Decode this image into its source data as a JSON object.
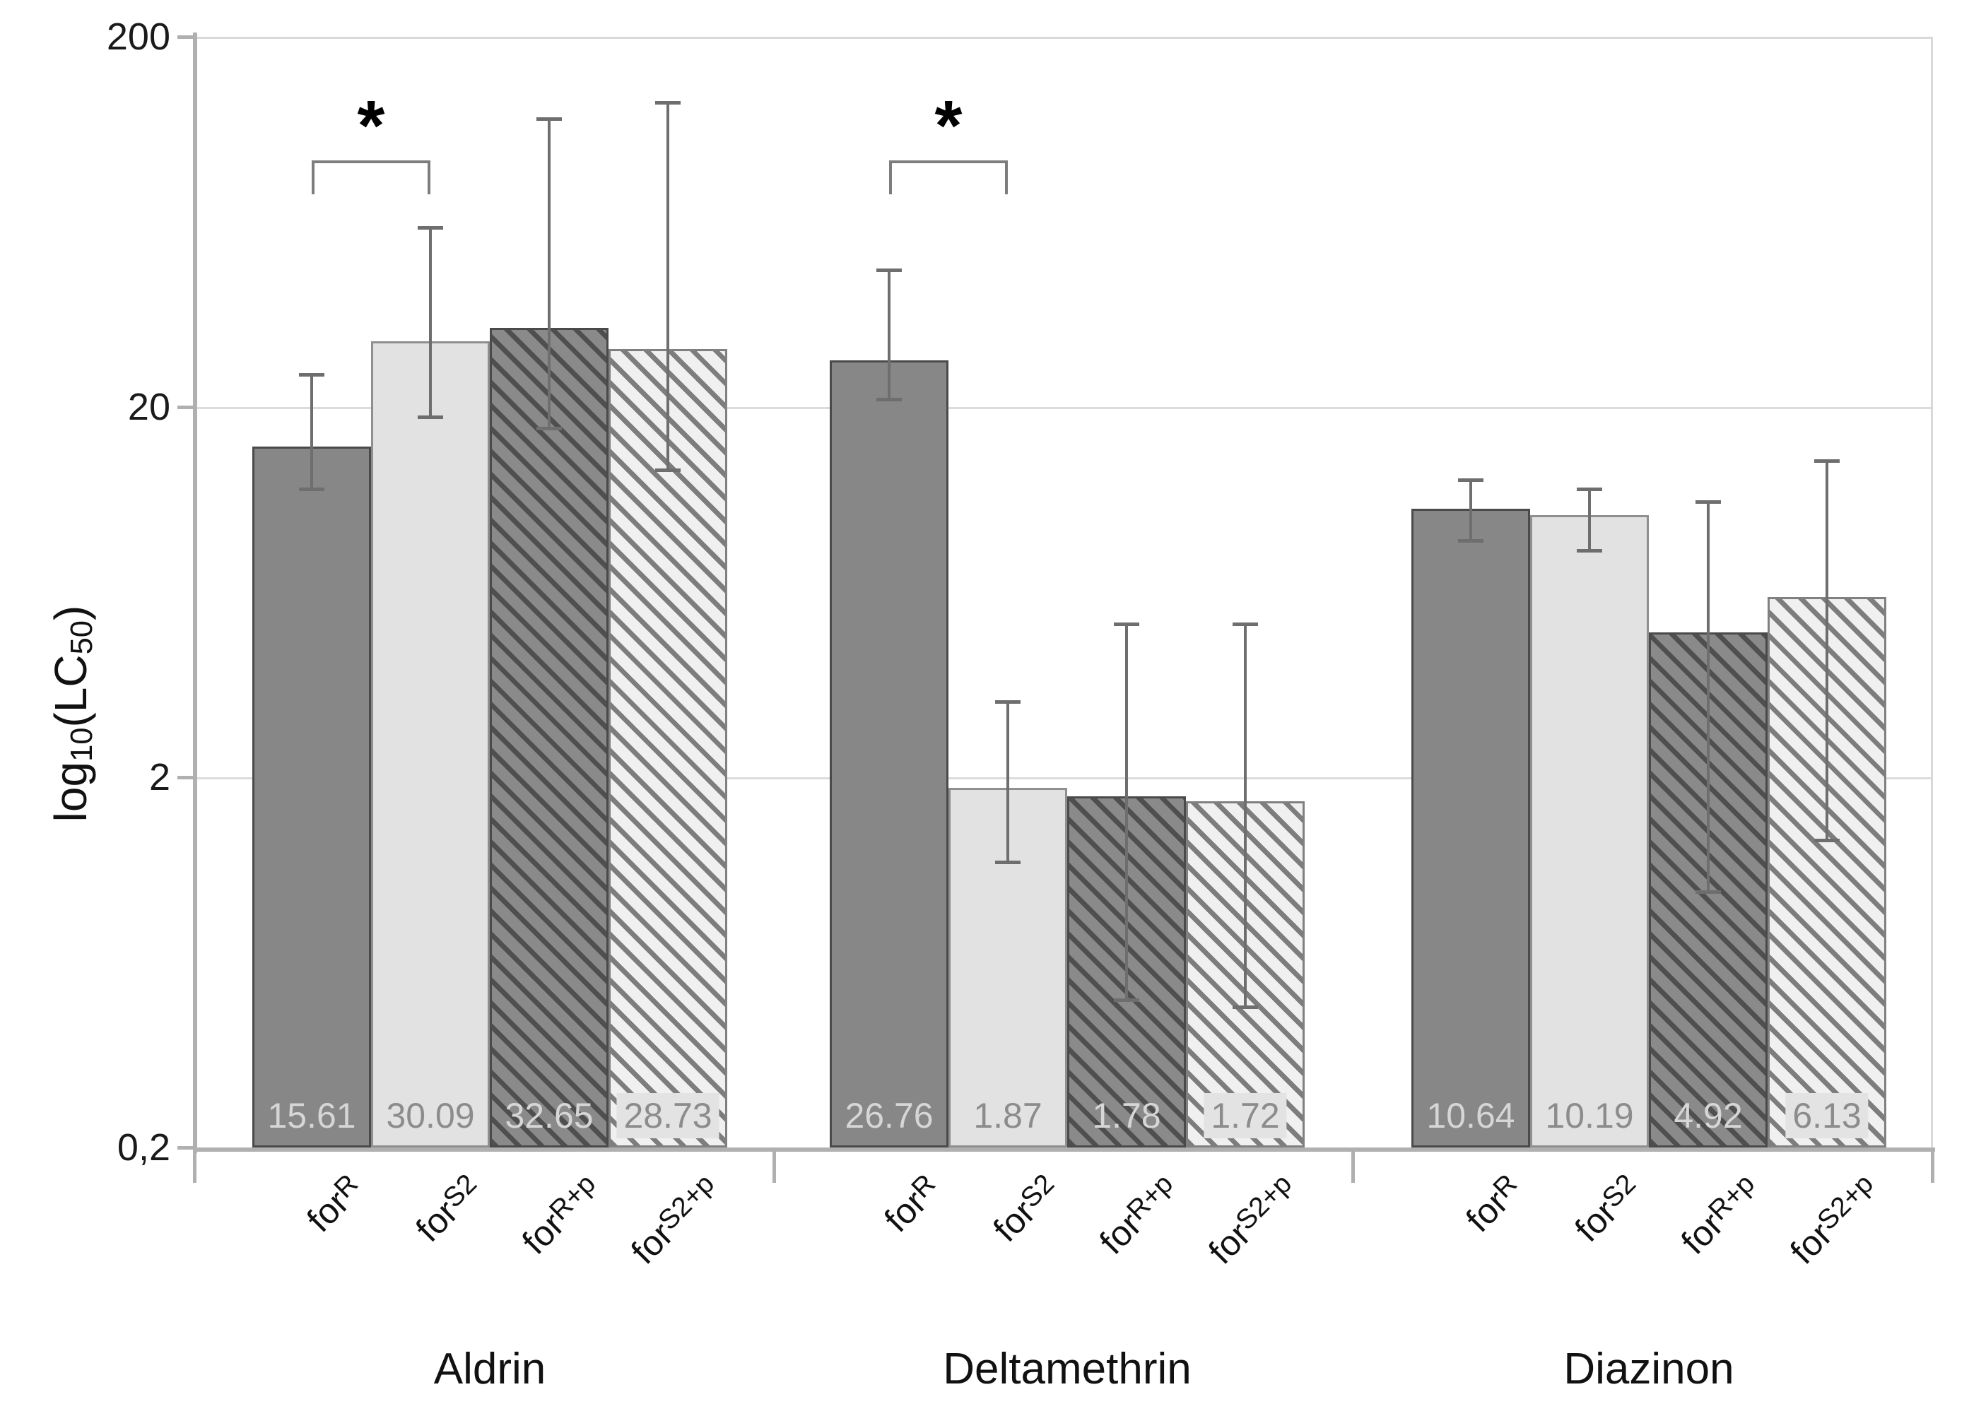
{
  "chart_data": {
    "type": "bar",
    "title": "",
    "ylabel": "log10(LC50)",
    "ylabel_rich": {
      "prefix": "log",
      "sub1": "10",
      "mid": "(LC",
      "sub2": "50",
      "suffix": ")"
    },
    "y_scale": "log",
    "ylim": [
      0.2,
      200
    ],
    "y_ticks": [
      {
        "value": 200,
        "label": "200"
      },
      {
        "value": 20,
        "label": "20"
      },
      {
        "value": 2,
        "label": "2"
      },
      {
        "value": 0.2,
        "label": "0,2"
      }
    ],
    "grid": "horizontal gridlines at 20 and 2, full frame box",
    "legend_position": "none",
    "categories": [
      "Aldrin",
      "Deltamethrin",
      "Diazinon"
    ],
    "series_labels": [
      "forR",
      "forS2",
      "forR+p",
      "forS2+p"
    ],
    "series_label_parts": [
      {
        "base": "for",
        "sup": "R"
      },
      {
        "base": "for",
        "sup": "S2"
      },
      {
        "base": "for",
        "sup": "R+p"
      },
      {
        "base": "for",
        "sup": "S2+p"
      }
    ],
    "groups": [
      {
        "category": "Aldrin",
        "bars": [
          {
            "series": "forR",
            "value": 15.61,
            "value_label": "15.61",
            "err_low": 12.0,
            "err_high": 24.5
          },
          {
            "series": "forS2",
            "value": 30.09,
            "value_label": "30.09",
            "err_low": 18.8,
            "err_high": 61
          },
          {
            "series": "forR+p",
            "value": 32.65,
            "value_label": "32.65",
            "err_low": 17.5,
            "err_high": 120
          },
          {
            "series": "forS2+p",
            "value": 28.73,
            "value_label": "28.73",
            "err_low": 13.5,
            "err_high": 133
          }
        ]
      },
      {
        "category": "Deltamethrin",
        "bars": [
          {
            "series": "forR",
            "value": 26.76,
            "value_label": "26.76",
            "err_low": 21.0,
            "err_high": 47
          },
          {
            "series": "forS2",
            "value": 1.87,
            "value_label": "1.87",
            "err_low": 1.18,
            "err_high": 3.2
          },
          {
            "series": "forR+p",
            "value": 1.78,
            "value_label": "1.78",
            "err_low": 0.5,
            "err_high": 5.2
          },
          {
            "series": "forS2+p",
            "value": 1.72,
            "value_label": "1.72",
            "err_low": 0.48,
            "err_high": 5.2
          }
        ]
      },
      {
        "category": "Diazinon",
        "bars": [
          {
            "series": "forR",
            "value": 10.64,
            "value_label": "10.64",
            "err_low": 8.7,
            "err_high": 12.7
          },
          {
            "series": "forS2",
            "value": 10.19,
            "value_label": "10.19",
            "err_low": 8.2,
            "err_high": 12.0
          },
          {
            "series": "forR+p",
            "value": 4.92,
            "value_label": "4.92",
            "err_low": 0.98,
            "err_high": 11.1
          },
          {
            "series": "forS2+p",
            "value": 6.13,
            "value_label": "6.13",
            "err_low": 1.35,
            "err_high": 14.3
          }
        ]
      }
    ],
    "significance_brackets": [
      {
        "category": "Aldrin",
        "between": [
          "forR",
          "forS2"
        ],
        "label": "*"
      },
      {
        "category": "Deltamethrin",
        "between": [
          "forR",
          "forS2"
        ],
        "label": "*"
      }
    ],
    "bar_styles": {
      "forR": {
        "fill": "#878787",
        "border": "#4a4a4a",
        "hatch": false,
        "label_color": "#d6d6d6"
      },
      "forS2": {
        "fill": "#e2e2e2",
        "border": "#8f8f8f",
        "hatch": false,
        "label_color": "#8c8c8c"
      },
      "forR+p": {
        "fill": "#8a8a8a",
        "border": "#4a4a4a",
        "hatch": true,
        "hatch_color": "#4f4f4f",
        "label_color": "#d6d6d6"
      },
      "forS2+p": {
        "fill": "#f0f0f0",
        "border": "#808080",
        "hatch": true,
        "hatch_color": "#7d7d7d",
        "label_color": "#8c8c8c",
        "label_bg": "#e3e3e3"
      }
    },
    "axis_colors": {
      "axis": "#b0b0b0",
      "grid": "#dcdcdc",
      "error_bar": "#6e6e6e",
      "bracket": "#7d7d7d",
      "text": "#111111"
    }
  }
}
